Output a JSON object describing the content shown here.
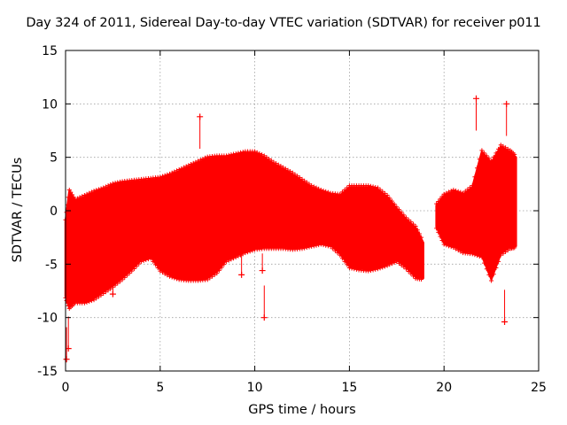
{
  "chart_data": {
    "type": "scatter",
    "title": "Day 324 of 2011, Sidereal Day-to-day VTEC variation (SDTVAR) for receiver p011",
    "xlabel": "GPS time / hours",
    "ylabel": "SDTVAR / TECUs",
    "xlim": [
      0,
      25
    ],
    "ylim": [
      -15,
      15
    ],
    "xticks": [
      0,
      5,
      10,
      15,
      20,
      25
    ],
    "yticks": [
      -15,
      -10,
      -5,
      0,
      5,
      10,
      15
    ],
    "xtick_labels": [
      "0",
      "5",
      "10",
      "15",
      "20",
      "25"
    ],
    "ytick_labels": [
      "-15",
      "-10",
      "-5",
      "0",
      "5",
      "10",
      "15"
    ],
    "grid": true,
    "marker": "+",
    "color": "#ff0000",
    "envelope": {
      "x": [
        0.0,
        0.2,
        0.5,
        1.0,
        1.5,
        2.0,
        2.5,
        3.0,
        3.5,
        4.0,
        4.5,
        5.0,
        5.5,
        6.0,
        6.5,
        7.0,
        7.5,
        8.0,
        8.5,
        9.0,
        9.5,
        10.0,
        10.5,
        11.0,
        11.5,
        12.0,
        12.5,
        13.0,
        13.5,
        14.0,
        14.5,
        15.0,
        15.5,
        16.0,
        16.5,
        17.0,
        17.5,
        18.0,
        18.5,
        18.9
      ],
      "upper": [
        -1.0,
        1.8,
        0.9,
        1.3,
        1.7,
        2.0,
        2.4,
        2.6,
        2.7,
        2.8,
        2.9,
        3.0,
        3.3,
        3.7,
        4.1,
        4.5,
        4.9,
        5.0,
        5.0,
        5.2,
        5.4,
        5.4,
        5.0,
        4.4,
        3.9,
        3.4,
        2.8,
        2.2,
        1.8,
        1.5,
        1.4,
        2.2,
        2.2,
        2.2,
        2.0,
        1.3,
        0.2,
        -0.8,
        -1.6,
        -3.0
      ],
      "lower": [
        -8.0,
        -9.0,
        -8.5,
        -8.5,
        -8.2,
        -7.6,
        -7.0,
        -6.3,
        -5.5,
        -4.6,
        -4.3,
        -5.5,
        -6.0,
        -6.3,
        -6.4,
        -6.4,
        -6.3,
        -5.7,
        -4.6,
        -4.2,
        -3.8,
        -3.5,
        -3.4,
        -3.4,
        -3.4,
        -3.5,
        -3.4,
        -3.2,
        -3.0,
        -3.2,
        -4.0,
        -5.2,
        -5.4,
        -5.5,
        -5.3,
        -5.0,
        -4.6,
        -5.3,
        -6.2,
        -6.3
      ]
    },
    "envelope_late": {
      "x": [
        19.6,
        20.0,
        20.5,
        21.0,
        21.5,
        22.0,
        22.5,
        23.0,
        23.5,
        23.8
      ],
      "upper": [
        0.5,
        1.4,
        1.8,
        1.5,
        2.2,
        5.5,
        4.5,
        6.0,
        5.5,
        5.0
      ],
      "lower": [
        -1.5,
        -3.0,
        -3.3,
        -3.8,
        -3.9,
        -4.2,
        -6.4,
        -4.0,
        -3.4,
        -3.3
      ]
    },
    "outliers": [
      {
        "x": 0.05,
        "y": -13.9
      },
      {
        "x": 0.15,
        "y": -12.9
      },
      {
        "x": 2.5,
        "y": -7.8
      },
      {
        "x": 7.1,
        "y": 8.8
      },
      {
        "x": 9.3,
        "y": -6.0
      },
      {
        "x": 10.5,
        "y": -10.0
      },
      {
        "x": 10.4,
        "y": -5.6
      },
      {
        "x": 21.7,
        "y": 10.5
      },
      {
        "x": 23.3,
        "y": 10.0
      },
      {
        "x": 23.2,
        "y": -10.4
      }
    ]
  }
}
